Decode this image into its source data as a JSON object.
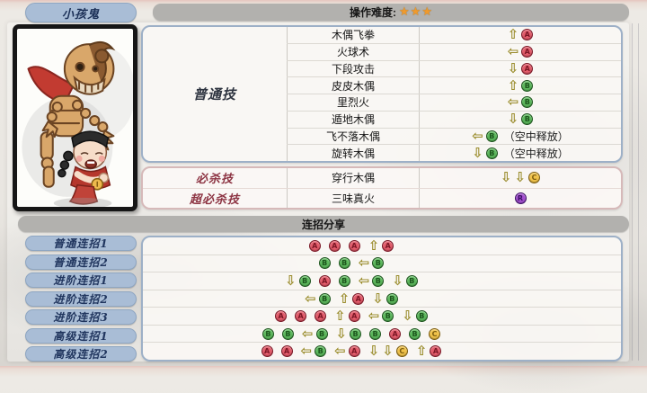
{
  "character": {
    "name": "小孩鬼"
  },
  "difficulty": {
    "label": "操作难度:",
    "stars": 3,
    "star_char": "★"
  },
  "arrows": {
    "up": "⇧",
    "left": "⇦",
    "down": "⇩"
  },
  "colors": {
    "arrow": "#9a8c2c",
    "star": "#f09a2c",
    "panel_border_blue": "#9db0c7",
    "panel_border_pink": "#d6b9b9",
    "pill_bg": "#a9bdd6",
    "bar_bg": "#b2b1ae"
  },
  "button_styles": {
    "A": {
      "bg": "#e25b6a",
      "fg": "#7a1725"
    },
    "B": {
      "bg": "#5cb85c",
      "fg": "#1d551d"
    },
    "C": {
      "bg": "#f0c24a",
      "fg": "#7c5d10"
    },
    "R": {
      "bg": "#a44fd0",
      "fg": "#3d1166"
    }
  },
  "moves": {
    "normal": {
      "section_label": "普通技",
      "rows": [
        {
          "name": "木偶飞拳",
          "tokens": [
            {
              "dirs": [
                "up"
              ],
              "btn": "A"
            }
          ],
          "note": ""
        },
        {
          "name": "火球术",
          "tokens": [
            {
              "dirs": [
                "left"
              ],
              "btn": "A"
            }
          ],
          "note": ""
        },
        {
          "name": "下段攻击",
          "tokens": [
            {
              "dirs": [
                "down"
              ],
              "btn": "A"
            }
          ],
          "note": ""
        },
        {
          "name": "皮皮木偶",
          "tokens": [
            {
              "dirs": [
                "up"
              ],
              "btn": "B"
            }
          ],
          "note": ""
        },
        {
          "name": "里烈火",
          "tokens": [
            {
              "dirs": [
                "left"
              ],
              "btn": "B"
            }
          ],
          "note": ""
        },
        {
          "name": "遁地木偶",
          "tokens": [
            {
              "dirs": [
                "down"
              ],
              "btn": "B"
            }
          ],
          "note": ""
        },
        {
          "name": "飞不落木偶",
          "tokens": [
            {
              "dirs": [
                "left"
              ],
              "btn": "B"
            }
          ],
          "note": "（空中释放）"
        },
        {
          "name": "旋转木偶",
          "tokens": [
            {
              "dirs": [
                "down"
              ],
              "btn": "B"
            }
          ],
          "note": "（空中释放）"
        }
      ]
    },
    "special": {
      "rows": [
        {
          "section_label": "必杀技",
          "name": "穿行木偶",
          "tokens": [
            {
              "dirs": [
                "down",
                "down"
              ],
              "btn": "C"
            }
          ],
          "note": ""
        },
        {
          "section_label": "超必杀技",
          "name": "三味真火",
          "tokens": [
            {
              "dirs": [],
              "btn": "R"
            }
          ],
          "note": ""
        }
      ]
    }
  },
  "combos": {
    "header": "连招分享",
    "rows": [
      {
        "label": "普通连招1",
        "tokens": [
          {
            "dirs": [],
            "btn": "A"
          },
          {
            "dirs": [],
            "btn": "A"
          },
          {
            "dirs": [],
            "btn": "A"
          },
          {
            "dirs": [
              "up"
            ],
            "btn": "A"
          }
        ]
      },
      {
        "label": "普通连招2",
        "tokens": [
          {
            "dirs": [],
            "btn": "B"
          },
          {
            "dirs": [],
            "btn": "B"
          },
          {
            "dirs": [
              "left"
            ],
            "btn": "B"
          }
        ]
      },
      {
        "label": "进阶连招1",
        "tokens": [
          {
            "dirs": [
              "down"
            ],
            "btn": "B"
          },
          {
            "dirs": [],
            "btn": "A"
          },
          {
            "dirs": [],
            "btn": "B"
          },
          {
            "dirs": [
              "left"
            ],
            "btn": "B"
          },
          {
            "dirs": [
              "down"
            ],
            "btn": "B"
          }
        ]
      },
      {
        "label": "进阶连招2",
        "tokens": [
          {
            "dirs": [
              "left"
            ],
            "btn": "B"
          },
          {
            "dirs": [
              "up"
            ],
            "btn": "A"
          },
          {
            "dirs": [
              "down"
            ],
            "btn": "B"
          }
        ]
      },
      {
        "label": "进阶连招3",
        "tokens": [
          {
            "dirs": [],
            "btn": "A"
          },
          {
            "dirs": [],
            "btn": "A"
          },
          {
            "dirs": [],
            "btn": "A"
          },
          {
            "dirs": [
              "up"
            ],
            "btn": "A"
          },
          {
            "dirs": [
              "left"
            ],
            "btn": "B"
          },
          {
            "dirs": [
              "down"
            ],
            "btn": "B"
          }
        ]
      },
      {
        "label": "高级连招1",
        "tokens": [
          {
            "dirs": [],
            "btn": "B"
          },
          {
            "dirs": [],
            "btn": "B"
          },
          {
            "dirs": [
              "left"
            ],
            "btn": "B"
          },
          {
            "dirs": [
              "down"
            ],
            "btn": "B"
          },
          {
            "dirs": [],
            "btn": "B"
          },
          {
            "dirs": [],
            "btn": "A"
          },
          {
            "dirs": [],
            "btn": "B"
          },
          {
            "dirs": [],
            "btn": "C"
          }
        ]
      },
      {
        "label": "高级连招2",
        "tokens": [
          {
            "dirs": [],
            "btn": "A"
          },
          {
            "dirs": [],
            "btn": "A"
          },
          {
            "dirs": [
              "left"
            ],
            "btn": "B"
          },
          {
            "dirs": [
              "left"
            ],
            "btn": "A"
          },
          {
            "dirs": [
              "down",
              "down"
            ],
            "btn": "C"
          },
          {
            "dirs": [
              "up"
            ],
            "btn": "A"
          }
        ]
      }
    ]
  }
}
